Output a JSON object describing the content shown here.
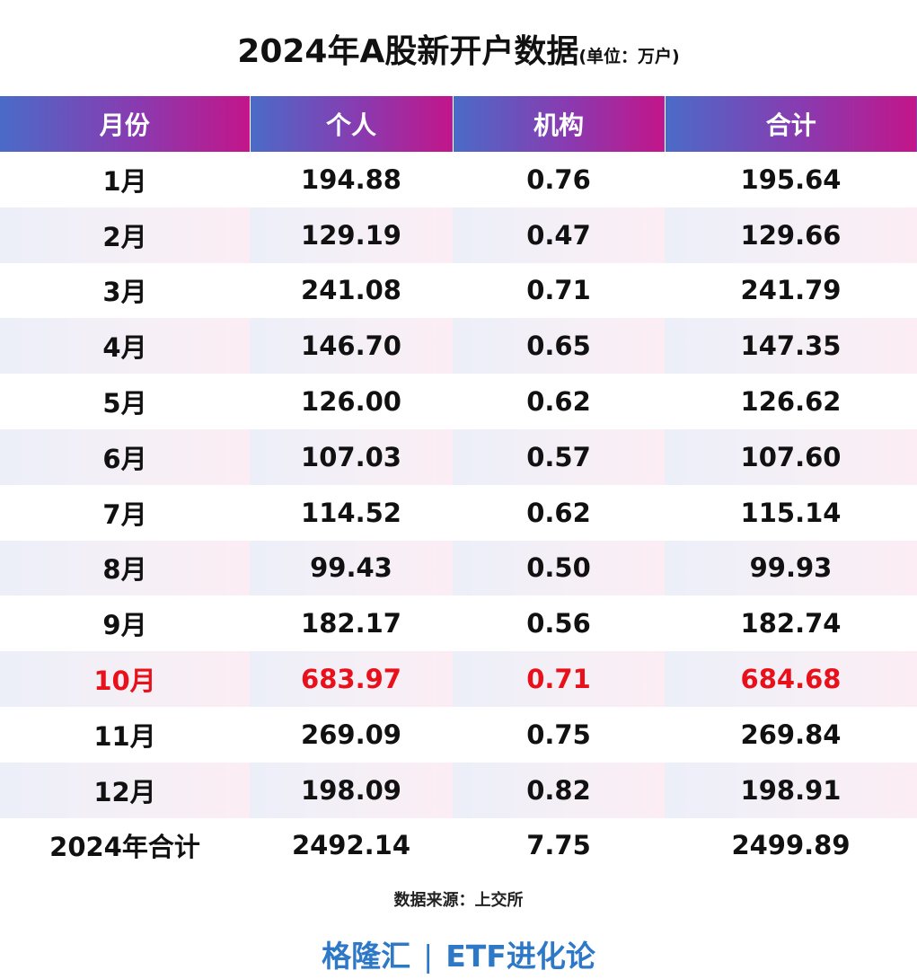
{
  "title": {
    "main": "2024年A股新开户数据",
    "unit": "(单位：万户)"
  },
  "chart_data": {
    "type": "table",
    "title": "2024年A股新开户数据",
    "unit": "(单位：万户)",
    "columns": [
      "月份",
      "个人",
      "机构",
      "合计"
    ],
    "rows": [
      [
        "1月",
        "194.88",
        "0.76",
        "195.64"
      ],
      [
        "2月",
        "129.19",
        "0.47",
        "129.66"
      ],
      [
        "3月",
        "241.08",
        "0.71",
        "241.79"
      ],
      [
        "4月",
        "146.70",
        "0.65",
        "147.35"
      ],
      [
        "5月",
        "126.00",
        "0.62",
        "126.62"
      ],
      [
        "6月",
        "107.03",
        "0.57",
        "107.60"
      ],
      [
        "7月",
        "114.52",
        "0.62",
        "115.14"
      ],
      [
        "8月",
        "99.43",
        "0.50",
        "99.93"
      ],
      [
        "9月",
        "182.17",
        "0.56",
        "182.74"
      ],
      [
        "10月",
        "683.97",
        "0.71",
        "684.68"
      ],
      [
        "11月",
        "269.09",
        "0.75",
        "269.84"
      ],
      [
        "12月",
        "198.09",
        "0.82",
        "198.91"
      ],
      [
        "2024年合计",
        "2492.14",
        "7.75",
        "2499.89"
      ]
    ],
    "highlight_row": "10月",
    "highlight_color": "#e8101a"
  },
  "source": "数据来源：上交所",
  "brand": {
    "name": "格隆汇",
    "separator": "|",
    "column": "ETF进化论",
    "color": "#2e78c8"
  },
  "colors": {
    "header_start": "#4a6bc8",
    "header_end": "#c3158a",
    "highlight": "#e8101a"
  }
}
